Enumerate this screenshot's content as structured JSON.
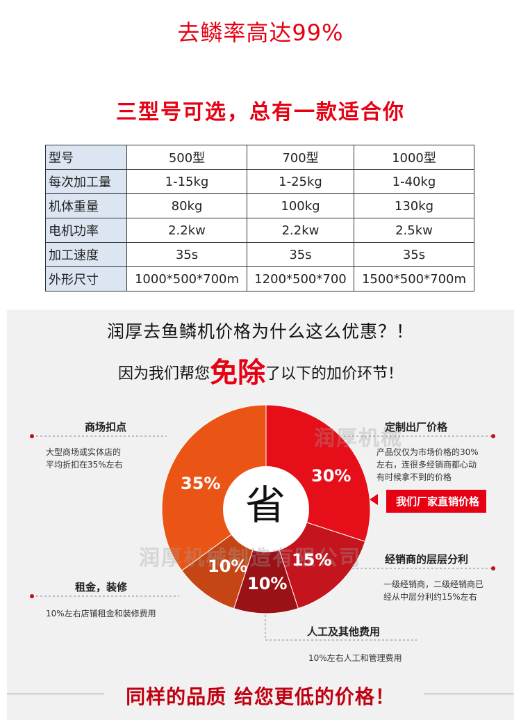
{
  "header": {
    "title": "去鳞率高达99%",
    "subtitle": "三型号可选，总有一款适合你"
  },
  "spec_table": {
    "columns": [
      "型号",
      "500型",
      "700型",
      "1000型"
    ],
    "rows": [
      [
        "每次加工量",
        "1-15kg",
        "1-25kg",
        "1-40kg"
      ],
      [
        "机体重量",
        "80kg",
        "100kg",
        "130kg"
      ],
      [
        "电机功率",
        "2.2kw",
        "2.2kw",
        "2.5kw"
      ],
      [
        "加工速度",
        "35s",
        "35s",
        "35s"
      ],
      [
        "外形尺寸",
        "1000*500*700m",
        "1200*500*700",
        "1500*500*700m"
      ]
    ]
  },
  "promo": {
    "heading1": "润厚去鱼鳞机价格为什么这么优惠？！",
    "heading2_pre": "因为我们帮您",
    "heading2_big": "免除",
    "heading2_post": "了以下的加价环节！",
    "center_label": "省",
    "watermark_small": "润厚机械",
    "watermark_large": "润厚机械制造有限公司",
    "tag": "我们厂家直销价格",
    "footer": "同样的品质 给您更低的价格！",
    "sections": [
      {
        "title": "商场扣点",
        "desc": [
          "大型商场或实体店的",
          "平均折扣在35%左右"
        ]
      },
      {
        "title": "定制出厂价格",
        "desc": [
          "产品仅仅为市场价格的30%",
          "左右，连很多经销商都心动",
          "有时候拿不到的价格"
        ]
      },
      {
        "title": "经销商的层层分利",
        "desc": [
          "一级经销商，二级经销商已",
          "经从中层分利约15%左右"
        ]
      },
      {
        "title": "租金，装修",
        "desc": [
          "10%左右店铺租金和装修费用"
        ]
      },
      {
        "title": "人工及其他费用",
        "desc": [
          "10%左右人工和管理费用"
        ]
      }
    ]
  },
  "chart_data": {
    "type": "pie",
    "categories": [
      "定制出厂价格",
      "经销商的层层分利",
      "人工及其他费用",
      "租金，装修",
      "商场扣点"
    ],
    "values": [
      30,
      15,
      10,
      10,
      35
    ],
    "labels": [
      "30%",
      "15%",
      "10%",
      "10%",
      "35%"
    ],
    "colors": [
      "#e60e19",
      "#c4141e",
      "#9a1216",
      "#c64515",
      "#ea5414"
    ]
  }
}
